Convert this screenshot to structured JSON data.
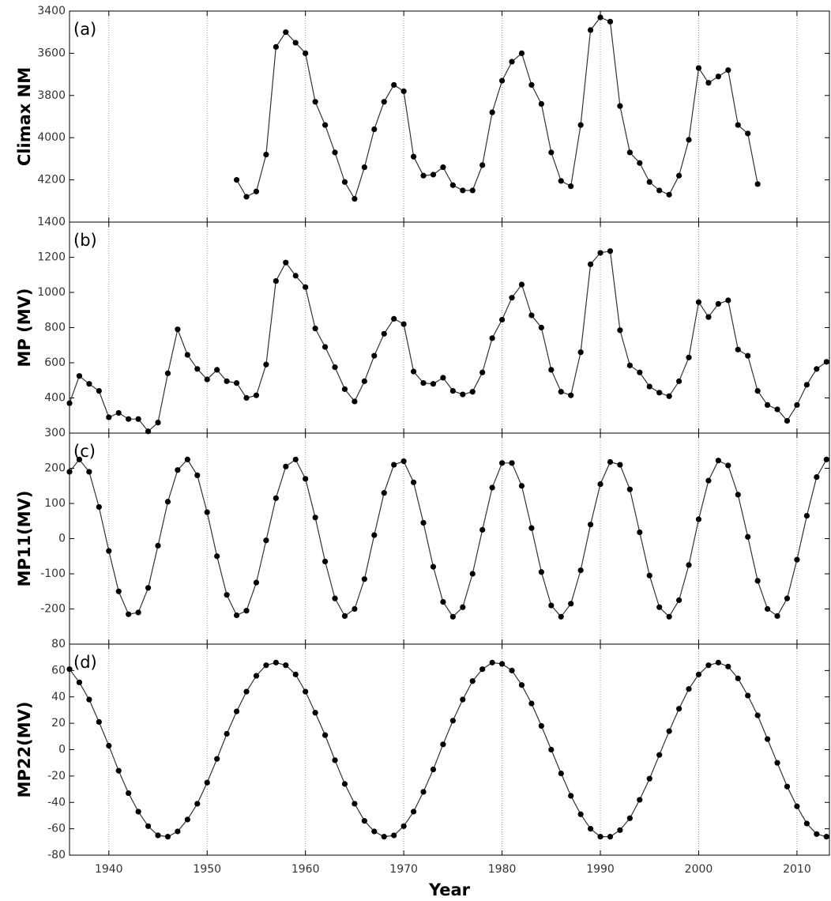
{
  "chart_data": [
    {
      "type": "line",
      "annotation": "(a)",
      "ylabel": "Climax NM",
      "color": "#333333",
      "marker_color": "#000000",
      "x": [
        1953,
        1954,
        1955,
        1956,
        1957,
        1958,
        1959,
        1960,
        1961,
        1962,
        1963,
        1964,
        1965,
        1966,
        1967,
        1968,
        1969,
        1970,
        1971,
        1972,
        1973,
        1974,
        1975,
        1976,
        1977,
        1978,
        1979,
        1980,
        1981,
        1982,
        1983,
        1984,
        1985,
        1986,
        1987,
        1988,
        1989,
        1990,
        1991,
        1992,
        1993,
        1994,
        1995,
        1996,
        1997,
        1998,
        1999,
        2000,
        2001,
        2002,
        2003,
        2004,
        2005,
        2006
      ],
      "values": [
        4200,
        4280,
        4255,
        4080,
        3570,
        3500,
        3550,
        3600,
        3830,
        3940,
        4070,
        4210,
        4290,
        4140,
        3960,
        3830,
        3750,
        3780,
        4090,
        4180,
        4175,
        4140,
        4225,
        4250,
        4250,
        4130,
        3880,
        3730,
        3640,
        3600,
        3750,
        3840,
        4070,
        4205,
        4230,
        3940,
        3490,
        3430,
        3450,
        3850,
        4070,
        4120,
        4210,
        4250,
        4270,
        4180,
        4010,
        3670,
        3740,
        3710,
        3680,
        3940,
        3980,
        4220
      ],
      "xlim": [
        1936,
        2013.3
      ],
      "xticks": [
        1940,
        1950,
        1960,
        1970,
        1980,
        1990,
        2000,
        2010
      ],
      "ylim": [
        3400,
        4400
      ],
      "y_inverted": true,
      "yticks": [
        3400,
        3600,
        3800,
        4000,
        4200
      ],
      "grid": "x"
    },
    {
      "type": "line",
      "annotation": "(b)",
      "ylabel": "MP (MV)",
      "color": "#333333",
      "marker_color": "#000000",
      "x": [
        1936,
        1937,
        1938,
        1939,
        1940,
        1941,
        1942,
        1943,
        1944,
        1945,
        1946,
        1947,
        1948,
        1949,
        1950,
        1951,
        1952,
        1953,
        1954,
        1955,
        1956,
        1957,
        1958,
        1959,
        1960,
        1961,
        1962,
        1963,
        1964,
        1965,
        1966,
        1967,
        1968,
        1969,
        1970,
        1971,
        1972,
        1973,
        1974,
        1975,
        1976,
        1977,
        1978,
        1979,
        1980,
        1981,
        1982,
        1983,
        1984,
        1985,
        1986,
        1987,
        1988,
        1989,
        1990,
        1991,
        1992,
        1993,
        1994,
        1995,
        1996,
        1997,
        1998,
        1999,
        2000,
        2001,
        2002,
        2003,
        2004,
        2005,
        2006,
        2007,
        2008,
        2009,
        2010,
        2011,
        2012,
        2013
      ],
      "values": [
        370,
        525,
        480,
        440,
        290,
        315,
        280,
        280,
        210,
        260,
        540,
        790,
        645,
        565,
        505,
        560,
        495,
        485,
        400,
        415,
        590,
        1065,
        1170,
        1095,
        1030,
        795,
        690,
        575,
        450,
        380,
        495,
        640,
        765,
        850,
        820,
        550,
        485,
        480,
        515,
        440,
        420,
        435,
        545,
        740,
        845,
        970,
        1045,
        870,
        800,
        560,
        435,
        415,
        660,
        1160,
        1225,
        1235,
        785,
        585,
        545,
        465,
        430,
        410,
        495,
        630,
        945,
        860,
        935,
        955,
        675,
        640,
        440,
        360,
        335,
        270,
        360,
        475,
        565,
        605
      ],
      "xlim": [
        1936,
        2013.3
      ],
      "xticks": [
        1940,
        1950,
        1960,
        1970,
        1980,
        1990,
        2000,
        2010
      ],
      "ylim": [
        200,
        1400
      ],
      "yticks": [
        400,
        600,
        800,
        1000,
        1200,
        1400
      ],
      "grid": "x"
    },
    {
      "type": "line",
      "annotation": "(c)",
      "ylabel": "MP11(MV)",
      "color": "#333333",
      "marker_color": "#000000",
      "x": [
        1936,
        1937,
        1938,
        1939,
        1940,
        1941,
        1942,
        1943,
        1944,
        1945,
        1946,
        1947,
        1948,
        1949,
        1950,
        1951,
        1952,
        1953,
        1954,
        1955,
        1956,
        1957,
        1958,
        1959,
        1960,
        1961,
        1962,
        1963,
        1964,
        1965,
        1966,
        1967,
        1968,
        1969,
        1970,
        1971,
        1972,
        1973,
        1974,
        1975,
        1976,
        1977,
        1978,
        1979,
        1980,
        1981,
        1982,
        1983,
        1984,
        1985,
        1986,
        1987,
        1988,
        1989,
        1990,
        1991,
        1992,
        1993,
        1994,
        1995,
        1996,
        1997,
        1998,
        1999,
        2000,
        2001,
        2002,
        2003,
        2004,
        2005,
        2006,
        2007,
        2008,
        2009,
        2010,
        2011,
        2012,
        2013
      ],
      "values": [
        190,
        225,
        190,
        90,
        -35,
        -150,
        -215,
        -210,
        -140,
        -20,
        105,
        195,
        225,
        180,
        75,
        -50,
        -160,
        -218,
        -205,
        -125,
        -5,
        115,
        205,
        225,
        170,
        60,
        -65,
        -170,
        -220,
        -200,
        -115,
        10,
        130,
        210,
        220,
        160,
        45,
        -80,
        -180,
        -222,
        -195,
        -100,
        25,
        145,
        215,
        215,
        150,
        30,
        -95,
        -190,
        -222,
        -185,
        -90,
        40,
        155,
        218,
        210,
        140,
        18,
        -105,
        -195,
        -222,
        -175,
        -75,
        55,
        165,
        222,
        208,
        125,
        5,
        -120,
        -200,
        -220,
        -170,
        -60,
        65,
        175,
        225
      ],
      "xlim": [
        1936,
        2013.3
      ],
      "xticks": [
        1940,
        1950,
        1960,
        1970,
        1980,
        1990,
        2000,
        2010
      ],
      "ylim": [
        -300,
        300
      ],
      "yticks": [
        -200,
        -100,
        0,
        100,
        200,
        300
      ],
      "grid": "x"
    },
    {
      "type": "line",
      "annotation": "(d)",
      "ylabel": "MP22(MV)",
      "xlabel": "Year",
      "color": "#333333",
      "marker_color": "#000000",
      "x": [
        1936,
        1937,
        1938,
        1939,
        1940,
        1941,
        1942,
        1943,
        1944,
        1945,
        1946,
        1947,
        1948,
        1949,
        1950,
        1951,
        1952,
        1953,
        1954,
        1955,
        1956,
        1957,
        1958,
        1959,
        1960,
        1961,
        1962,
        1963,
        1964,
        1965,
        1966,
        1967,
        1968,
        1969,
        1970,
        1971,
        1972,
        1973,
        1974,
        1975,
        1976,
        1977,
        1978,
        1979,
        1980,
        1981,
        1982,
        1983,
        1984,
        1985,
        1986,
        1987,
        1988,
        1989,
        1990,
        1991,
        1992,
        1993,
        1994,
        1995,
        1996,
        1997,
        1998,
        1999,
        2000,
        2001,
        2002,
        2003,
        2004,
        2005,
        2006,
        2007,
        2008,
        2009,
        2010,
        2011,
        2012,
        2013
      ],
      "values": [
        61,
        51,
        38,
        21,
        3,
        -16,
        -33,
        -47,
        -58,
        -65,
        -66,
        -62,
        -53,
        -41,
        -25,
        -7,
        12,
        29,
        44,
        56,
        64,
        66,
        64,
        57,
        44,
        28,
        11,
        -8,
        -26,
        -41,
        -54,
        -62,
        -66,
        -65,
        -58,
        -47,
        -32,
        -15,
        4,
        22,
        38,
        52,
        61,
        66,
        65,
        60,
        49,
        35,
        18,
        0,
        -18,
        -35,
        -49,
        -60,
        -66,
        -66,
        -61,
        -52,
        -38,
        -22,
        -4,
        14,
        31,
        46,
        57,
        64,
        66,
        63,
        54,
        41,
        26,
        8,
        -10,
        -28,
        -43,
        -56,
        -64,
        -66
      ],
      "xlim": [
        1936,
        2013.3
      ],
      "xticks": [
        1940,
        1950,
        1960,
        1970,
        1980,
        1990,
        2000,
        2010
      ],
      "ylim": [
        -80,
        80
      ],
      "yticks": [
        -80,
        -60,
        -40,
        -20,
        0,
        20,
        40,
        60,
        80
      ],
      "grid": "x"
    }
  ]
}
